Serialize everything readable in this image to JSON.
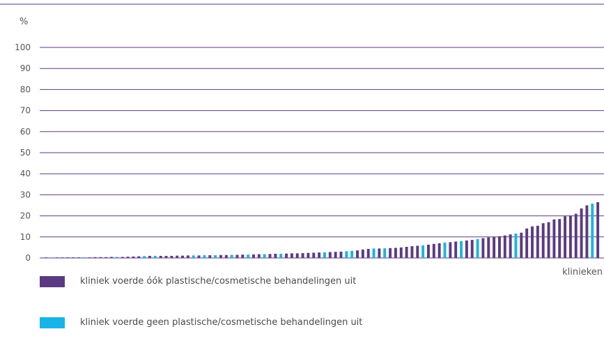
{
  "colors": {
    "purple": "#5b3a83",
    "cyan": "#19b4e6",
    "grid": "#5b3a83",
    "text": "#555555"
  },
  "chart_data": {
    "type": "bar",
    "ylabel": "%",
    "xlabel": "klinieken",
    "ylim": [
      0,
      100
    ],
    "yticks": [
      0,
      10,
      20,
      30,
      40,
      50,
      60,
      70,
      80,
      90,
      100
    ],
    "grid": true,
    "legend_placement": "bottom-left",
    "series": [
      {
        "name": "kliniek voerde óók plastische/cosmetische behandelingen uit",
        "color": "#5b3a83"
      },
      {
        "name": "kliniek voerde geen plastische/cosmetische behandelingen uit",
        "color": "#19b4e6"
      }
    ],
    "bars": [
      {
        "v": 0.2,
        "s": 0
      },
      {
        "v": 0.2,
        "s": 1
      },
      {
        "v": 0.2,
        "s": 0
      },
      {
        "v": 0.2,
        "s": 0
      },
      {
        "v": 0.3,
        "s": 0
      },
      {
        "v": 0.3,
        "s": 0
      },
      {
        "v": 0.3,
        "s": 0
      },
      {
        "v": 0.3,
        "s": 1
      },
      {
        "v": 0.3,
        "s": 0
      },
      {
        "v": 0.4,
        "s": 0
      },
      {
        "v": 0.4,
        "s": 0
      },
      {
        "v": 0.4,
        "s": 0
      },
      {
        "v": 0.5,
        "s": 0
      },
      {
        "v": 0.5,
        "s": 1
      },
      {
        "v": 0.5,
        "s": 0
      },
      {
        "v": 0.6,
        "s": 0
      },
      {
        "v": 0.7,
        "s": 0
      },
      {
        "v": 0.8,
        "s": 0
      },
      {
        "v": 0.9,
        "s": 1
      },
      {
        "v": 1.0,
        "s": 0
      },
      {
        "v": 1.0,
        "s": 1
      },
      {
        "v": 1.0,
        "s": 0
      },
      {
        "v": 1.0,
        "s": 0
      },
      {
        "v": 1.0,
        "s": 0
      },
      {
        "v": 1.1,
        "s": 0
      },
      {
        "v": 1.1,
        "s": 0
      },
      {
        "v": 1.2,
        "s": 0
      },
      {
        "v": 1.2,
        "s": 1
      },
      {
        "v": 1.2,
        "s": 0
      },
      {
        "v": 1.3,
        "s": 1
      },
      {
        "v": 1.3,
        "s": 0
      },
      {
        "v": 1.3,
        "s": 1
      },
      {
        "v": 1.4,
        "s": 0
      },
      {
        "v": 1.4,
        "s": 0
      },
      {
        "v": 1.5,
        "s": 1
      },
      {
        "v": 1.5,
        "s": 0
      },
      {
        "v": 1.6,
        "s": 0
      },
      {
        "v": 1.6,
        "s": 1
      },
      {
        "v": 1.7,
        "s": 0
      },
      {
        "v": 1.8,
        "s": 0
      },
      {
        "v": 1.8,
        "s": 1
      },
      {
        "v": 1.9,
        "s": 0
      },
      {
        "v": 2.0,
        "s": 0
      },
      {
        "v": 2.0,
        "s": 1
      },
      {
        "v": 2.1,
        "s": 0
      },
      {
        "v": 2.2,
        "s": 0
      },
      {
        "v": 2.2,
        "s": 0
      },
      {
        "v": 2.3,
        "s": 0
      },
      {
        "v": 2.4,
        "s": 0
      },
      {
        "v": 2.5,
        "s": 0
      },
      {
        "v": 2.6,
        "s": 0
      },
      {
        "v": 2.7,
        "s": 1
      },
      {
        "v": 2.8,
        "s": 0
      },
      {
        "v": 2.9,
        "s": 0
      },
      {
        "v": 3.0,
        "s": 0
      },
      {
        "v": 3.2,
        "s": 1
      },
      {
        "v": 3.4,
        "s": 1
      },
      {
        "v": 3.6,
        "s": 0
      },
      {
        "v": 4.0,
        "s": 0
      },
      {
        "v": 4.3,
        "s": 0
      },
      {
        "v": 4.5,
        "s": 1
      },
      {
        "v": 4.5,
        "s": 0
      },
      {
        "v": 4.6,
        "s": 1
      },
      {
        "v": 4.7,
        "s": 0
      },
      {
        "v": 4.8,
        "s": 0
      },
      {
        "v": 5.0,
        "s": 0
      },
      {
        "v": 5.3,
        "s": 0
      },
      {
        "v": 5.6,
        "s": 0
      },
      {
        "v": 5.8,
        "s": 0
      },
      {
        "v": 6.0,
        "s": 1
      },
      {
        "v": 6.3,
        "s": 0
      },
      {
        "v": 6.7,
        "s": 0
      },
      {
        "v": 7.0,
        "s": 0
      },
      {
        "v": 7.3,
        "s": 1
      },
      {
        "v": 7.5,
        "s": 0
      },
      {
        "v": 7.8,
        "s": 0
      },
      {
        "v": 8.0,
        "s": 1
      },
      {
        "v": 8.3,
        "s": 0
      },
      {
        "v": 8.6,
        "s": 0
      },
      {
        "v": 9.0,
        "s": 1
      },
      {
        "v": 9.4,
        "s": 0
      },
      {
        "v": 9.8,
        "s": 0
      },
      {
        "v": 10.0,
        "s": 0
      },
      {
        "v": 10.3,
        "s": 0
      },
      {
        "v": 10.7,
        "s": 0
      },
      {
        "v": 11.2,
        "s": 0
      },
      {
        "v": 11.6,
        "s": 1
      },
      {
        "v": 12.0,
        "s": 0
      },
      {
        "v": 14.0,
        "s": 0
      },
      {
        "v": 15.0,
        "s": 0
      },
      {
        "v": 15.3,
        "s": 0
      },
      {
        "v": 16.5,
        "s": 0
      },
      {
        "v": 17.0,
        "s": 0
      },
      {
        "v": 18.3,
        "s": 0
      },
      {
        "v": 18.5,
        "s": 0
      },
      {
        "v": 19.8,
        "s": 0
      },
      {
        "v": 20.2,
        "s": 0
      },
      {
        "v": 21.0,
        "s": 0
      },
      {
        "v": 23.5,
        "s": 0
      },
      {
        "v": 25.0,
        "s": 0
      },
      {
        "v": 25.8,
        "s": 1
      },
      {
        "v": 26.5,
        "s": 0
      }
    ]
  }
}
